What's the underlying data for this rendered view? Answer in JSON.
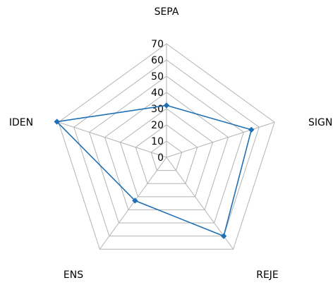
{
  "chart_data": {
    "type": "radar",
    "categories": [
      "SEPA",
      "SIGN",
      "REJE",
      "ENS",
      "IDEN"
    ],
    "rlim": [
      0,
      70
    ],
    "ticks": [
      "0",
      "10",
      "20",
      "30",
      "40",
      "50",
      "60",
      "70"
    ],
    "series": [
      {
        "values": [
          32,
          55,
          60,
          33,
          71
        ],
        "color": "#1f6fb4"
      }
    ],
    "grid": true,
    "legend": false
  }
}
